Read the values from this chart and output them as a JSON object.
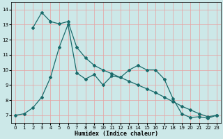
{
  "xlabel": "Humidex (Indice chaleur)",
  "background_color": "#cce8e8",
  "line_color": "#1a6b6b",
  "xlim": [
    -0.5,
    23.5
  ],
  "ylim": [
    6.5,
    14.5
  ],
  "xticks": [
    0,
    1,
    2,
    3,
    4,
    5,
    6,
    7,
    8,
    9,
    10,
    11,
    12,
    13,
    14,
    15,
    16,
    17,
    18,
    19,
    20,
    21,
    22,
    23
  ],
  "yticks": [
    7,
    8,
    9,
    10,
    11,
    12,
    13,
    14
  ],
  "series1_x": [
    2,
    3,
    4,
    5,
    6,
    7,
    8,
    9,
    10,
    11,
    12,
    13,
    14,
    15,
    16,
    17,
    18,
    19,
    20,
    21,
    22,
    23
  ],
  "series1_y": [
    12.8,
    13.8,
    13.2,
    13.05,
    13.2,
    11.5,
    10.8,
    10.3,
    10.0,
    9.75,
    9.5,
    9.25,
    9.0,
    8.75,
    8.5,
    8.2,
    7.9,
    7.6,
    7.35,
    7.1,
    6.9,
    7.0
  ],
  "series2_x": [
    0,
    1,
    2,
    3,
    4,
    5,
    6,
    7,
    8,
    9,
    10,
    11,
    12,
    13,
    14,
    15,
    16,
    17,
    18,
    19,
    20,
    21,
    22,
    23
  ],
  "series2_y": [
    7.0,
    7.1,
    7.5,
    8.2,
    9.5,
    11.5,
    13.0,
    9.8,
    9.4,
    9.7,
    9.0,
    9.6,
    9.5,
    10.0,
    10.3,
    10.0,
    10.0,
    9.4,
    8.1,
    7.1,
    6.85,
    6.9,
    6.8,
    7.0
  ],
  "grid_color": "#e8a0a0",
  "marker": "D",
  "markersize": 2.0,
  "linewidth": 0.9
}
